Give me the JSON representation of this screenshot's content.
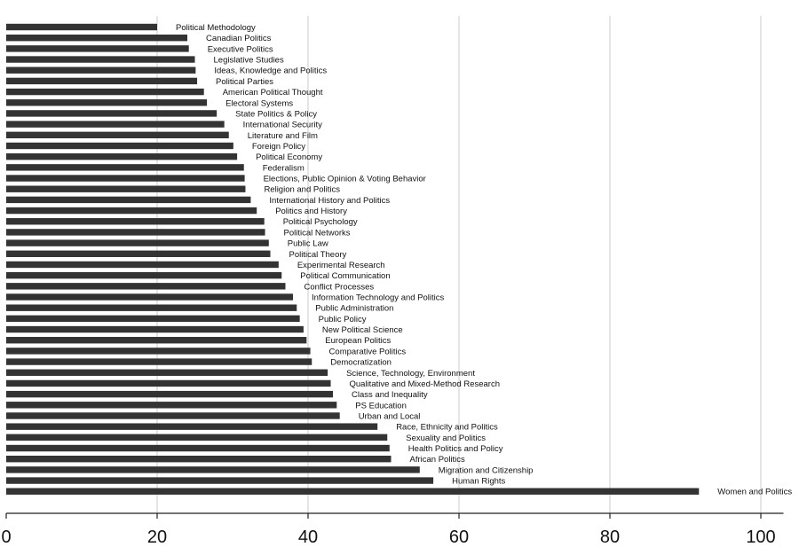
{
  "chart_data": {
    "type": "bar",
    "orientation": "horizontal",
    "categories": [
      "Political Methodology",
      "Canadian Politics",
      "Executive Politics",
      "Legislative Studies",
      "Ideas, Knowledge and Politics",
      "Political Parties",
      "American Political Thought",
      "Electoral Systems",
      "State Politics & Policy",
      "International Security",
      "Literature and Film",
      "Foreign Policy",
      "Political Economy",
      "Federalism",
      "Elections, Public Opinion & Voting Behavior",
      "Religion and Politics",
      "International History and Politics",
      "Politics and History",
      "Political Psychology",
      "Political Networks",
      "Public Law",
      "Political Theory",
      "Experimental Research",
      "Political Communication",
      "Conflict Processes",
      "Information Technology and Politics",
      "Public Administration",
      "Public Policy",
      "New Political Science",
      "European Politics",
      "Comparative Politics",
      "Democratization",
      "Science, Technology, Environment",
      "Qualitative and Mixed-Method Research",
      "Class and Inequality",
      "PS Education",
      "Urban and Local",
      "Race, Ethnicity and Politics",
      "Sexuality and Politics",
      "Health Politics and Policy",
      "African Politics",
      "Migration and Citizenship",
      "Human Rights",
      "Women and Politics"
    ],
    "values": [
      20.0,
      24.0,
      24.2,
      25.0,
      25.1,
      25.3,
      26.2,
      26.6,
      27.9,
      28.9,
      29.5,
      30.1,
      30.6,
      31.5,
      31.6,
      31.7,
      32.4,
      33.2,
      34.2,
      34.3,
      34.8,
      35.0,
      36.1,
      36.5,
      37.0,
      38.0,
      38.5,
      38.9,
      39.4,
      39.8,
      40.3,
      40.5,
      42.6,
      43.0,
      43.3,
      43.8,
      44.2,
      49.2,
      50.5,
      50.8,
      51.0,
      54.8,
      56.6,
      91.8
    ],
    "xlim": [
      0,
      103
    ],
    "x_ticks": [
      "0",
      "20",
      "40",
      "60",
      "80",
      "100"
    ],
    "grid": true,
    "colors": {
      "bar": "#333333",
      "grid": "#d4d4d4",
      "axis": "#222222"
    }
  }
}
